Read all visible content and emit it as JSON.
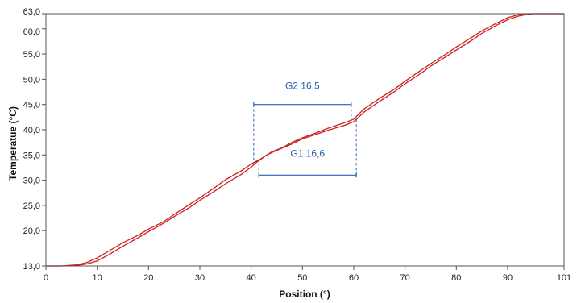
{
  "chart_data": {
    "type": "line",
    "title": "",
    "xlabel": "Position (°)",
    "ylabel": "Temperatue (°C)",
    "xlim": [
      0,
      101
    ],
    "ylim": [
      13,
      63
    ],
    "x_ticks": [
      0,
      10,
      20,
      30,
      40,
      50,
      60,
      70,
      80,
      90,
      101
    ],
    "y_ticks": [
      13,
      20,
      25,
      30,
      35,
      40,
      45,
      50,
      55,
      60,
      63
    ],
    "x_tick_labels": [
      "0",
      "10",
      "20",
      "30",
      "40",
      "50",
      "60",
      "70",
      "80",
      "90",
      "101"
    ],
    "y_tick_labels": [
      "13,0",
      "20,0",
      "25,0",
      "30,0",
      "35,0",
      "40,0",
      "45,0",
      "50,0",
      "55,0",
      "60,0",
      "63,0"
    ],
    "grid": false,
    "line_color": "#cc1f1f",
    "series": [
      {
        "x": [
          0,
          3,
          6,
          8,
          10,
          12,
          15,
          18,
          20,
          23,
          25,
          28,
          30,
          33,
          35,
          38,
          40,
          41,
          43,
          45,
          48,
          50,
          53,
          55,
          58,
          60,
          62,
          65,
          68,
          70,
          73,
          75,
          78,
          80,
          83,
          85,
          88,
          90,
          92,
          94,
          95,
          97,
          100,
          101
        ],
        "y": [
          13,
          13,
          13.1,
          13.4,
          14,
          15.1,
          16.9,
          18.6,
          19.8,
          21.5,
          22.8,
          24.6,
          26,
          27.9,
          29.3,
          31.1,
          32.6,
          33.5,
          35,
          35.9,
          37.2,
          38.2,
          39.2,
          39.9,
          40.8,
          41.6,
          43.5,
          45.6,
          47.6,
          49.1,
          51.1,
          52.6,
          54.5,
          55.8,
          57.7,
          59.1,
          60.8,
          61.8,
          62.5,
          62.9,
          63,
          63,
          63,
          63
        ]
      },
      {
        "x": [
          0,
          3,
          6,
          8,
          10,
          12,
          15,
          18,
          20,
          23,
          25,
          28,
          30,
          33,
          35,
          38,
          40,
          42,
          44,
          46,
          48,
          50,
          53,
          55,
          58,
          60,
          62,
          65,
          68,
          70,
          73,
          75,
          78,
          80,
          83,
          85,
          88,
          90,
          92,
          94,
          95,
          97,
          100,
          101
        ],
        "y": [
          13,
          13,
          13.2,
          13.7,
          14.6,
          15.8,
          17.6,
          19.1,
          20.3,
          21.8,
          23.2,
          25.2,
          26.5,
          28.6,
          30.1,
          31.8,
          33.2,
          34.3,
          35.6,
          36.4,
          37.5,
          38.4,
          39.5,
          40.3,
          41.3,
          42.1,
          44.1,
          46.2,
          48.1,
          49.6,
          51.7,
          53.1,
          55,
          56.4,
          58.3,
          59.6,
          61.2,
          62.2,
          62.8,
          63,
          63,
          63,
          63,
          63
        ]
      }
    ],
    "annotations": [
      {
        "label": "G2 16,5",
        "x_start": 40.5,
        "x_end": 59.5,
        "y": 45,
        "drop_y_left": 33,
        "drop_y_right": 41.2
      },
      {
        "label": "G1 16,6",
        "x_start": 41.5,
        "x_end": 60.5,
        "y": 31,
        "drop_y_left": 33.8,
        "drop_y_right": 42
      }
    ],
    "annotation_color": "#2b5db3"
  }
}
